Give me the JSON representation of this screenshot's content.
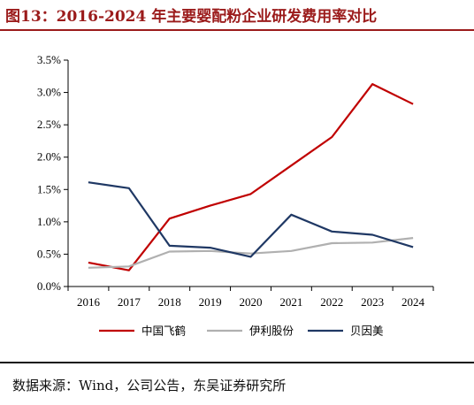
{
  "figure": {
    "title": "图13：2016-2024 年主要婴配粉企业研发费用率对比",
    "source": "数据来源：Wind，公司公告，东吴证券研究所"
  },
  "colors": {
    "title": "#9b1b1b",
    "series": [
      "#c00000",
      "#b0b0b0",
      "#1f3864"
    ],
    "axis": "#000000"
  },
  "chart_data": {
    "type": "line",
    "x": [
      "2016",
      "2017",
      "2018",
      "2019",
      "2020",
      "2021",
      "2022",
      "2023",
      "2024"
    ],
    "yticks": [
      "0.0%",
      "0.5%",
      "1.0%",
      "1.5%",
      "2.0%",
      "2.5%",
      "3.0%",
      "3.5%"
    ],
    "ylim": [
      0,
      3.5
    ],
    "unit": "%",
    "grid": false,
    "legend_position": "bottom",
    "series": [
      {
        "name": "中国飞鹤",
        "values": [
          0.37,
          0.25,
          1.05,
          1.25,
          1.43,
          1.87,
          2.31,
          3.13,
          2.82
        ]
      },
      {
        "name": "伊利股份",
        "values": [
          0.29,
          0.31,
          0.54,
          0.55,
          0.51,
          0.55,
          0.67,
          0.68,
          0.75
        ]
      },
      {
        "name": "贝因美",
        "values": [
          1.61,
          1.52,
          0.63,
          0.6,
          0.46,
          1.11,
          0.85,
          0.8,
          0.61
        ]
      }
    ]
  }
}
